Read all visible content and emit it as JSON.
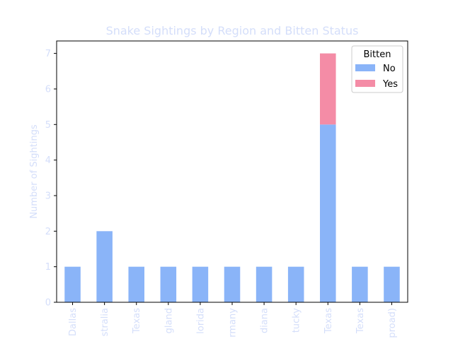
{
  "chart_data": {
    "type": "bar",
    "stacked": true,
    "title": "Snake Sightings by Region and Bitten Status",
    "xlabel": "",
    "ylabel": "Number of Sightings",
    "categories": [
      "Dallas",
      "Australia",
      "Texas",
      "England",
      "Florida",
      "Germany",
      "Indiana",
      "Kentucky",
      "Texas",
      "Texas",
      "(abroad)"
    ],
    "category_labels_visible": [
      "Dallas",
      "stralia",
      "Texas",
      "gland",
      "lorida",
      "rmany",
      "diana",
      "tucky",
      "Texas",
      "Texas",
      "proad)"
    ],
    "series": [
      {
        "name": "No",
        "values": [
          1,
          2,
          1,
          1,
          1,
          1,
          1,
          1,
          5,
          1,
          1
        ]
      },
      {
        "name": "Yes",
        "values": [
          0,
          0,
          0,
          0,
          0,
          0,
          0,
          0,
          2,
          0,
          0
        ]
      }
    ],
    "ylim": [
      0,
      7.35
    ],
    "yticks": [
      0,
      1,
      2,
      3,
      4,
      5,
      6,
      7
    ],
    "legend": {
      "title": "Bitten",
      "placement": "top-right"
    },
    "grid": false
  },
  "colors": {
    "No": "#8ab4f8",
    "Yes": "#f48ca6",
    "label_color": "#d4defa",
    "axis_color": "#000000"
  }
}
